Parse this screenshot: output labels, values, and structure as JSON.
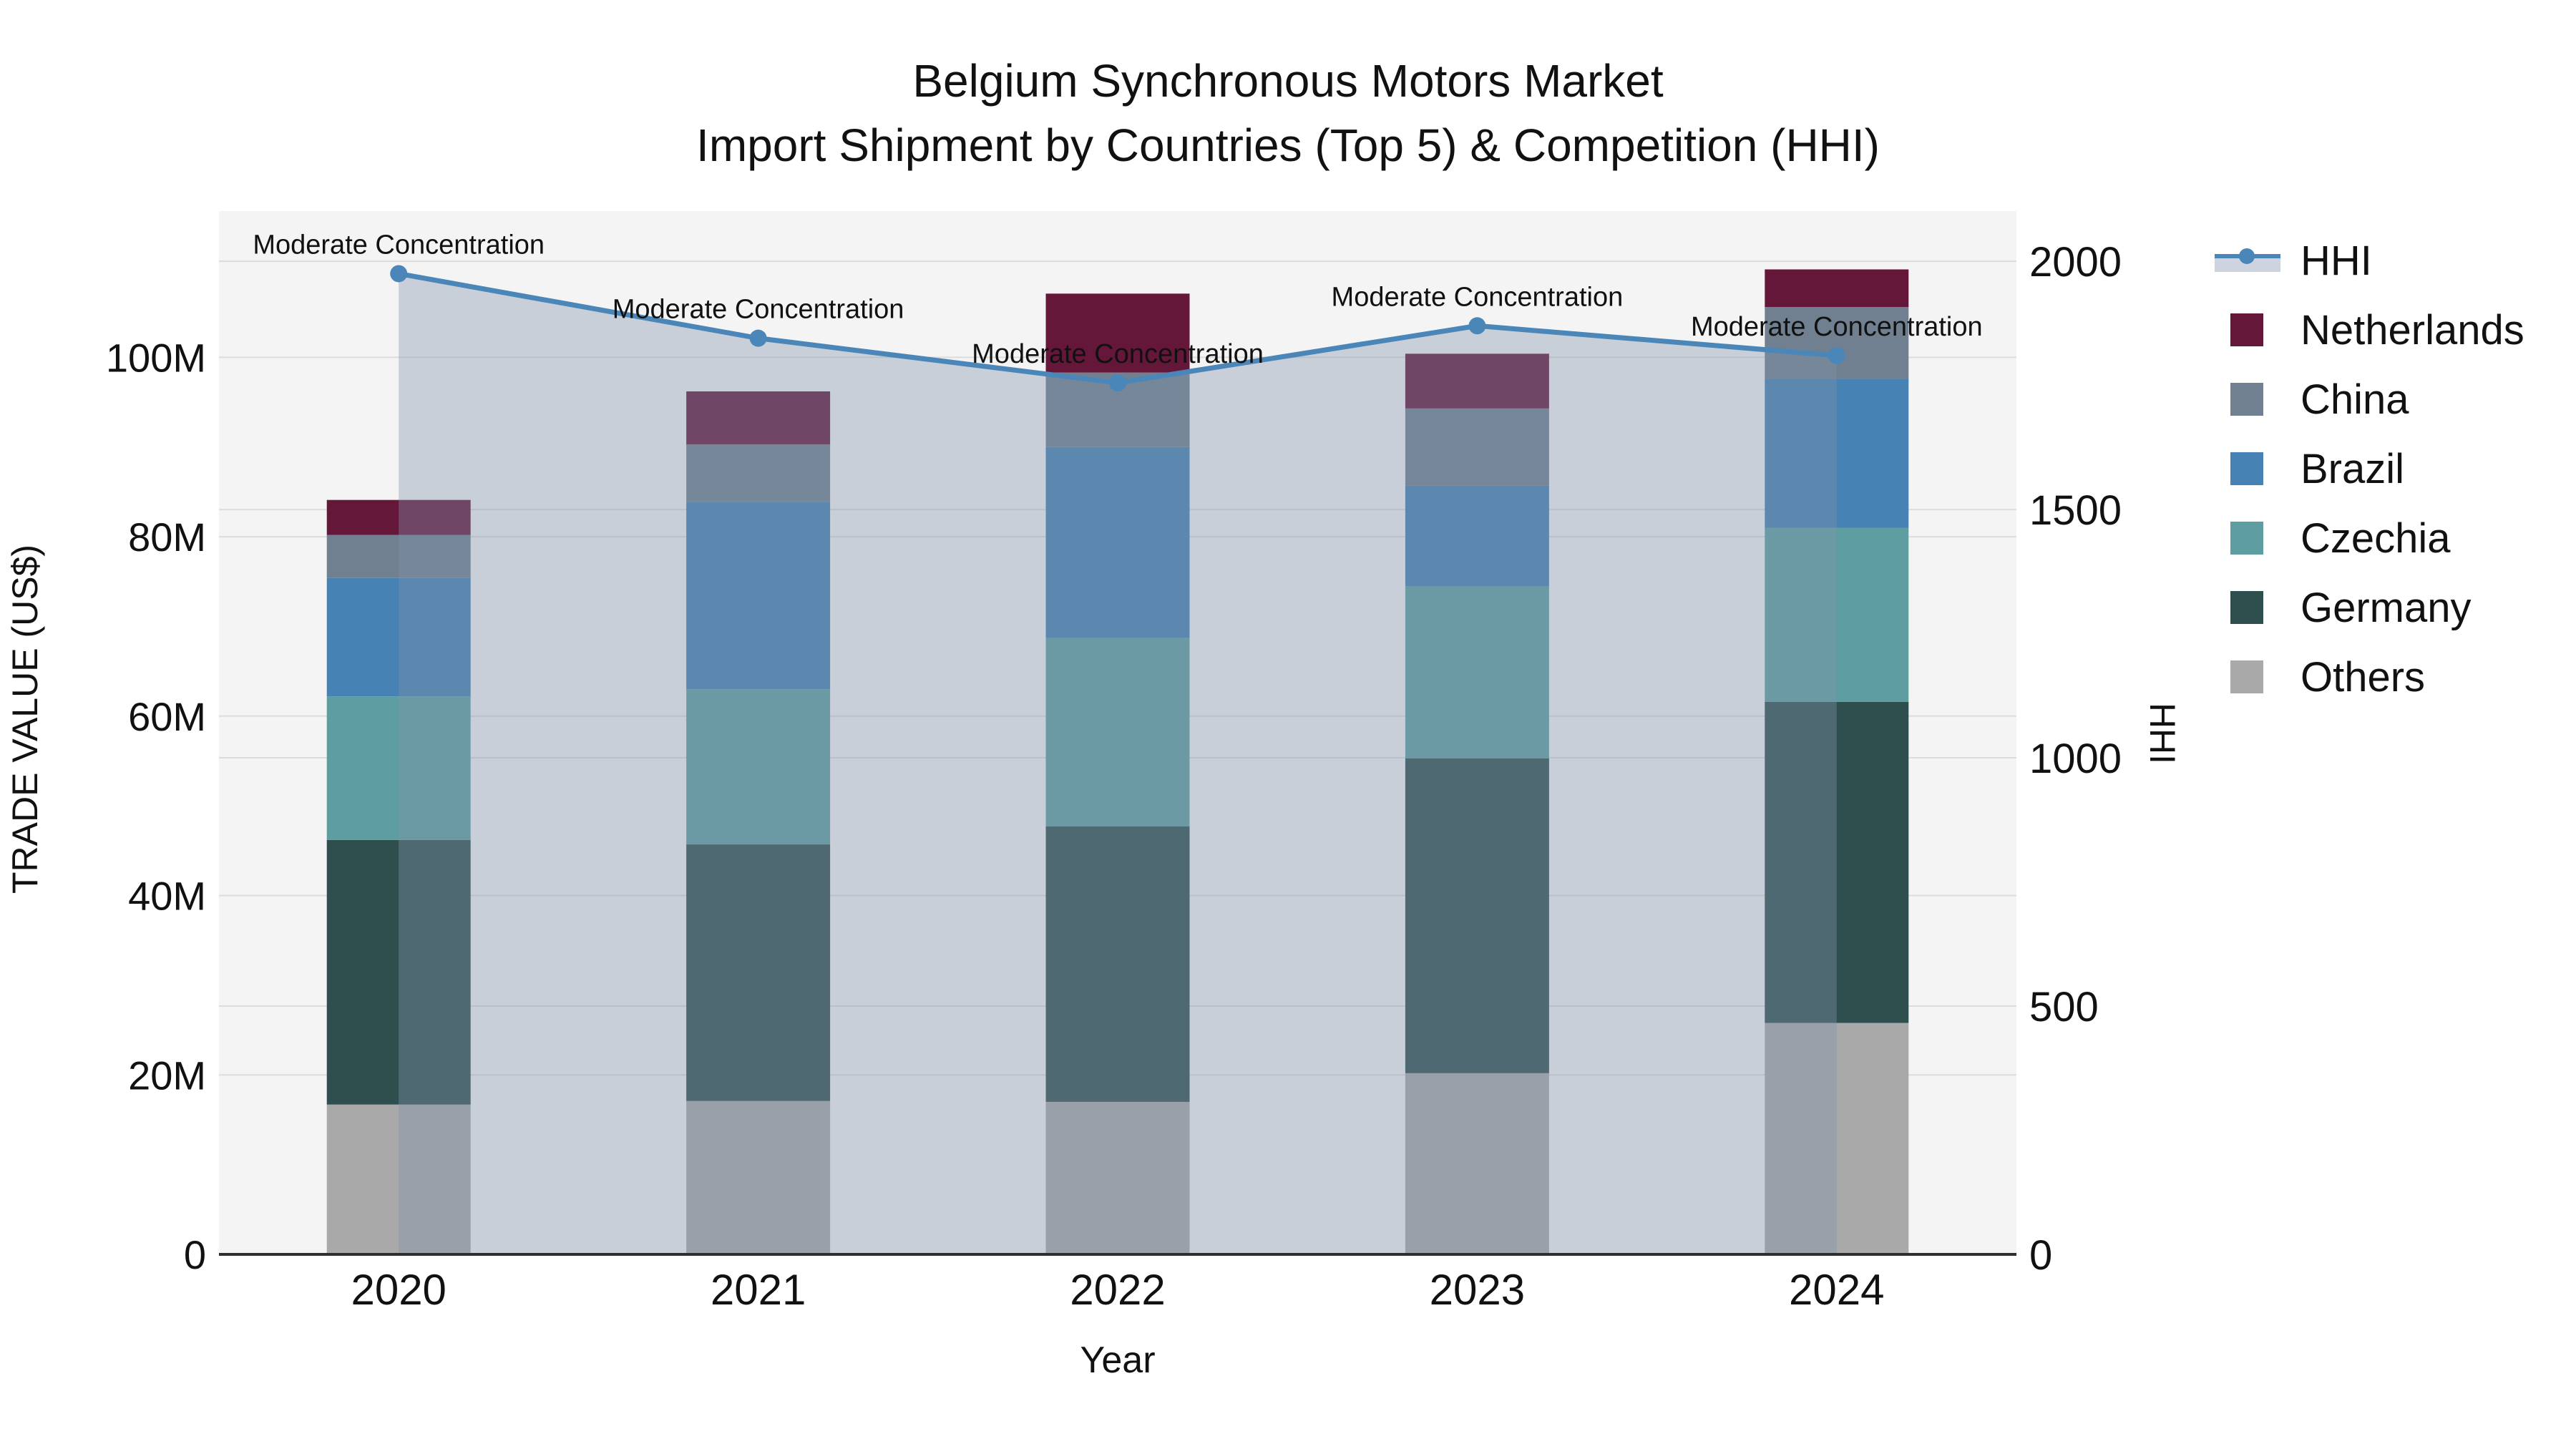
{
  "title": {
    "line1": "Belgium Synchronous Motors Market",
    "line2": "Import Shipment by Countries (Top 5) & Competition (HHI)"
  },
  "legend": {
    "items": [
      {
        "label": "HHI",
        "type": "line",
        "color": "#4A86B8",
        "band_color": "#CDD4DF"
      },
      {
        "label": "Netherlands",
        "type": "swatch",
        "color": "#65173A"
      },
      {
        "label": "China",
        "type": "swatch",
        "color": "#708090"
      },
      {
        "label": "Brazil",
        "type": "swatch",
        "color": "#4682B4"
      },
      {
        "label": "Czechia",
        "type": "swatch",
        "color": "#5F9EA0"
      },
      {
        "label": "Germany",
        "type": "swatch",
        "color": "#2F4F4F"
      },
      {
        "label": "Others",
        "type": "swatch",
        "color": "#A9A9A9"
      }
    ]
  },
  "colors": {
    "page_bg": "#FFFFFF",
    "plot_bg": "#F4F4F4",
    "grid": "#DCDCDC",
    "axis_line": "#2E2E2E",
    "text": "#111111"
  },
  "chart_data": {
    "type": "bar",
    "subtype": "stacked-bars-with-line-overlay",
    "title": "Belgium Synchronous Motors Market — Import Shipment by Countries (Top 5) & Competition (HHI)",
    "categories": [
      "2020",
      "2021",
      "2022",
      "2023",
      "2024"
    ],
    "series": [
      {
        "name": "Others",
        "color": "#A9A9A9",
        "values": [
          16.7,
          17.1,
          17.0,
          20.2,
          25.8
        ]
      },
      {
        "name": "Germany",
        "color": "#2F4F4F",
        "values": [
          29.5,
          28.6,
          30.7,
          35.1,
          35.8
        ]
      },
      {
        "name": "Czechia",
        "color": "#5F9EA0",
        "values": [
          16.0,
          17.3,
          21.0,
          19.2,
          19.4
        ]
      },
      {
        "name": "Brazil",
        "color": "#4682B4",
        "values": [
          13.2,
          20.9,
          21.3,
          11.2,
          16.6
        ]
      },
      {
        "name": "China",
        "color": "#708090",
        "values": [
          4.8,
          6.4,
          8.3,
          8.6,
          8.0
        ]
      },
      {
        "name": "Netherlands",
        "color": "#65173A",
        "values": [
          3.9,
          5.9,
          8.8,
          6.1,
          4.2
        ]
      }
    ],
    "bar_totals_million_usd": [
      84.1,
      96.2,
      107.1,
      100.4,
      109.8
    ],
    "line_series": {
      "name": "HHI",
      "axis": "right",
      "color": "#4A86B8",
      "area_fill": "rgba(130,146,172,0.38)",
      "values": [
        1975,
        1845,
        1755,
        1870,
        1810
      ]
    },
    "annotations": [
      "Moderate Concentration",
      "Moderate Concentration",
      "Moderate Concentration",
      "Moderate Concentration",
      "Moderate Concentration"
    ],
    "axes": {
      "left": {
        "title": "TRADE VALUE (US$)",
        "tick_labels": [
          "0",
          "20M",
          "40M",
          "60M",
          "80M",
          "100M"
        ],
        "tick_values": [
          0,
          20,
          40,
          60,
          80,
          100
        ],
        "max": 116.3
      },
      "right": {
        "title": "HHI",
        "tick_labels": [
          "0",
          "500",
          "1000",
          "1500",
          "2000"
        ],
        "tick_values": [
          0,
          500,
          1000,
          1500,
          2000
        ],
        "max": 2101
      },
      "x": {
        "title": "Year",
        "labels": [
          "2020",
          "2021",
          "2022",
          "2023",
          "2024"
        ]
      }
    },
    "grid": true,
    "legend_position": "right"
  }
}
